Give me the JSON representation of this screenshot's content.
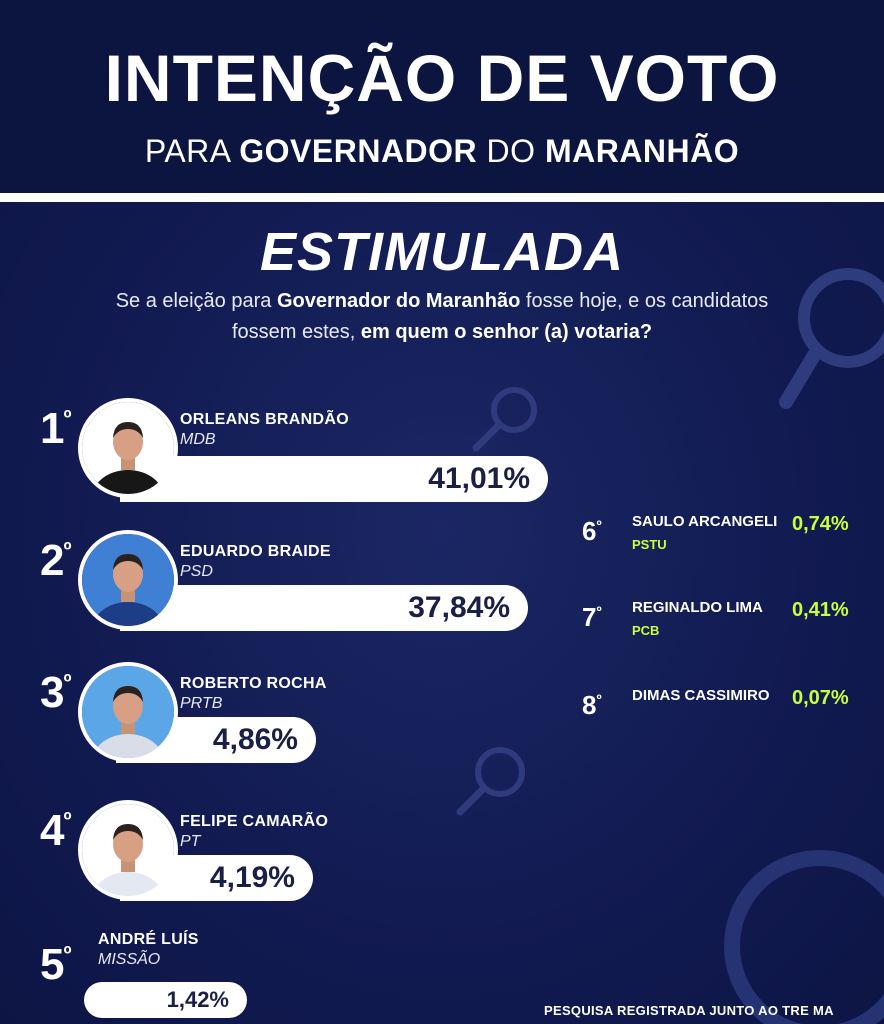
{
  "header": {
    "title": "INTENÇÃO DE VOTO",
    "subtitle_parts": [
      "PARA",
      "GOVERNADOR",
      "DO",
      "MARANHÃO"
    ]
  },
  "section": {
    "title": "ESTIMULADA",
    "question_parts": [
      "Se a eleição para ",
      "Governador do Maranhão",
      " fosse hoje, e os candidatos fossem estes, ",
      "em quem o senhor (a) votaria?"
    ]
  },
  "footer": {
    "text": "PESQUISA REGISTRADA JUNTO AO TRE MA"
  },
  "colors": {
    "background": "#10194a",
    "header": "#0c1440",
    "accent": "#c8ff3c",
    "bar": "#ffffff",
    "bar_text": "#1a1f46"
  },
  "chart_data": {
    "type": "bar",
    "title": "INTENÇÃO DE VOTO",
    "categories": [
      "ORLEANS BRANDÃO",
      "EDUARDO BRAIDE",
      "ROBERTO ROCHA",
      "FELIPE CAMARÃO",
      "ANDRÉ LUÍS",
      "SAULO ARCANGELI",
      "REGINALDO LIMA",
      "DIMAS CASSIMIRO"
    ],
    "parties": [
      "MDB",
      "PSD",
      "PRTB",
      "PT",
      "MISSÃO",
      "PSTU",
      "PCB",
      ""
    ],
    "ranks": [
      "1",
      "2",
      "3",
      "4",
      "5",
      "6",
      "7",
      "8"
    ],
    "rank_suffix": "º",
    "values": [
      41.01,
      37.84,
      4.86,
      4.19,
      1.42,
      0.74,
      0.41,
      0.07
    ],
    "labels": [
      "41,01%",
      "37,84%",
      "4,86%",
      "4,19%",
      "1,42%",
      "0,74%",
      "0,41%",
      "0,07%"
    ],
    "orientation": "horizontal"
  }
}
